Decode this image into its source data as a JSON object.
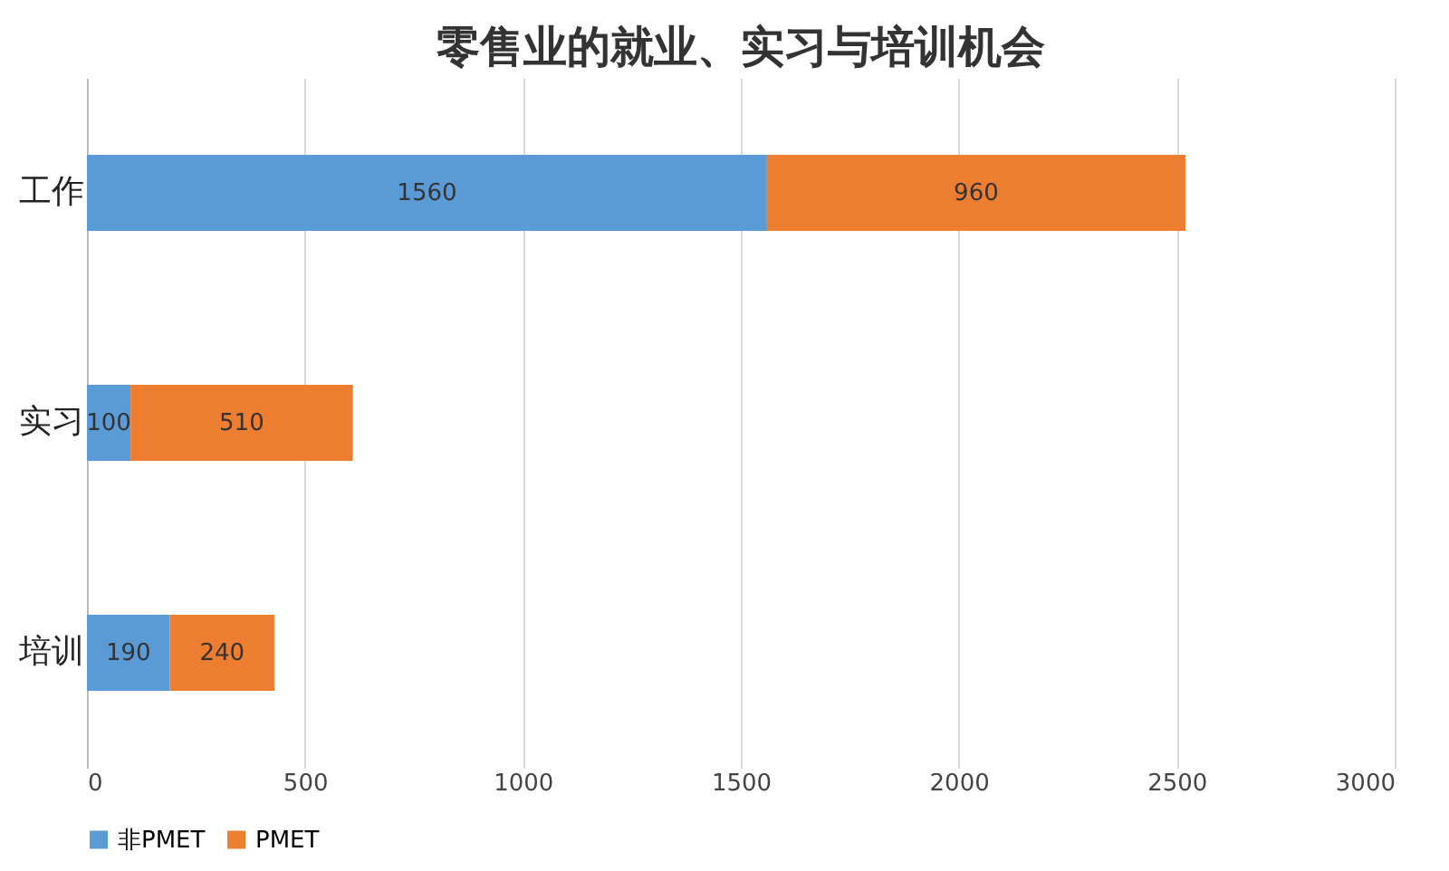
{
  "chart_data": {
    "type": "bar",
    "orientation": "horizontal",
    "stacked": true,
    "title": "零售业的就业、实习与培训机会",
    "categories": [
      "工作",
      "实习",
      "培训"
    ],
    "series": [
      {
        "name": "非PMET",
        "color": "#5b9bd5",
        "values": [
          1560,
          100,
          190
        ]
      },
      {
        "name": "PMET",
        "color": "#ed7d31",
        "values": [
          960,
          510,
          240
        ]
      }
    ],
    "xlim": [
      0,
      3000
    ],
    "xticks": [
      0,
      500,
      1000,
      1500,
      2000,
      2500,
      3000
    ],
    "grid": "x",
    "legend": "bottom",
    "data_labels": true
  }
}
